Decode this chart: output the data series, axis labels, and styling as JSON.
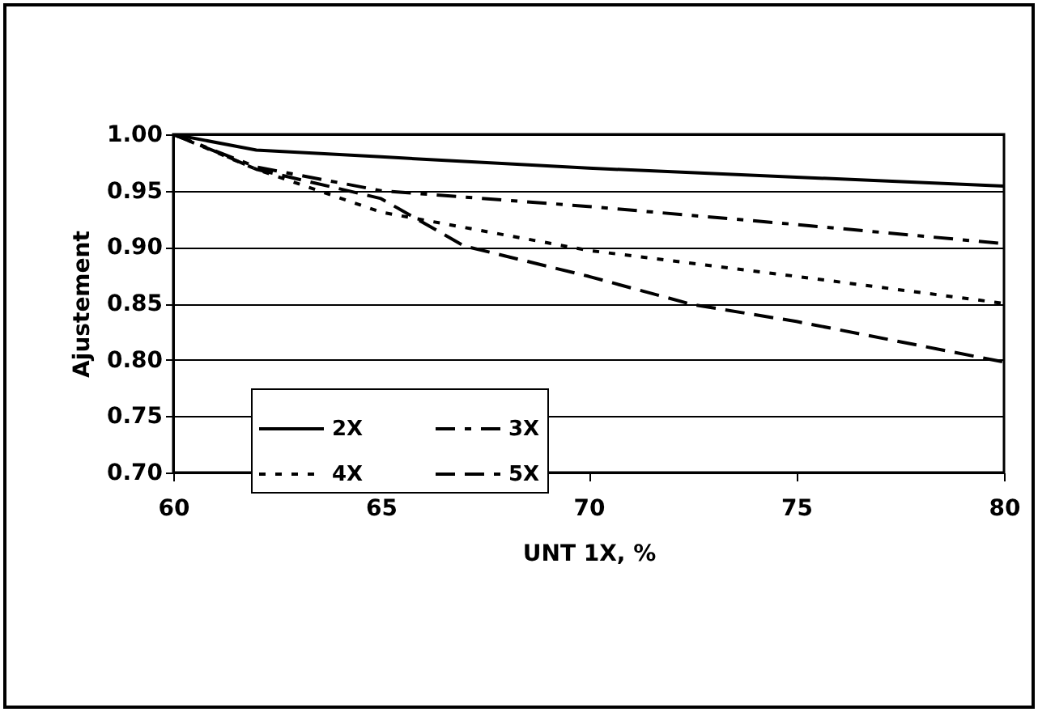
{
  "chart_data": {
    "type": "line",
    "xlabel": "UNT 1X, %",
    "ylabel": "Ajustement",
    "xlim": [
      60,
      80
    ],
    "xticks": [
      60,
      65,
      70,
      75,
      80
    ],
    "ylim": [
      0.7,
      1.0
    ],
    "yticks": [
      {
        "value": 0.7,
        "label": "0.70"
      },
      {
        "value": 0.75,
        "label": "0.75"
      },
      {
        "value": 0.8,
        "label": "0.80"
      },
      {
        "value": 0.85,
        "label": "0.85"
      },
      {
        "value": 0.9,
        "label": "0.90"
      },
      {
        "value": 0.95,
        "label": "0.95"
      },
      {
        "value": 1.0,
        "label": "1.00"
      }
    ],
    "grid": "y",
    "legend": "bottom left",
    "series": [
      {
        "name": "2X",
        "color": "#000000",
        "line_style": "solid",
        "x": [
          60,
          62,
          65,
          70,
          75,
          80
        ],
        "values": [
          1.0,
          0.986,
          0.98,
          0.97,
          0.962,
          0.954
        ]
      },
      {
        "name": "3X",
        "color": "#000000",
        "line_style": "dashdot",
        "x": [
          60,
          62,
          65,
          70,
          75,
          80
        ],
        "values": [
          1.0,
          0.971,
          0.95,
          0.936,
          0.92,
          0.903
        ]
      },
      {
        "name": "4X",
        "color": "#000000",
        "line_style": "dotted",
        "x": [
          60,
          62,
          65,
          70,
          75,
          80
        ],
        "values": [
          1.0,
          0.969,
          0.931,
          0.897,
          0.874,
          0.85
        ]
      },
      {
        "name": "5X",
        "color": "#000000",
        "line_style": "dashed",
        "x": [
          60,
          61,
          62,
          65,
          67,
          70,
          72.5,
          75,
          80
        ],
        "values": [
          1.0,
          0.985,
          0.969,
          0.943,
          0.901,
          0.874,
          0.849,
          0.834,
          0.798
        ]
      }
    ]
  }
}
